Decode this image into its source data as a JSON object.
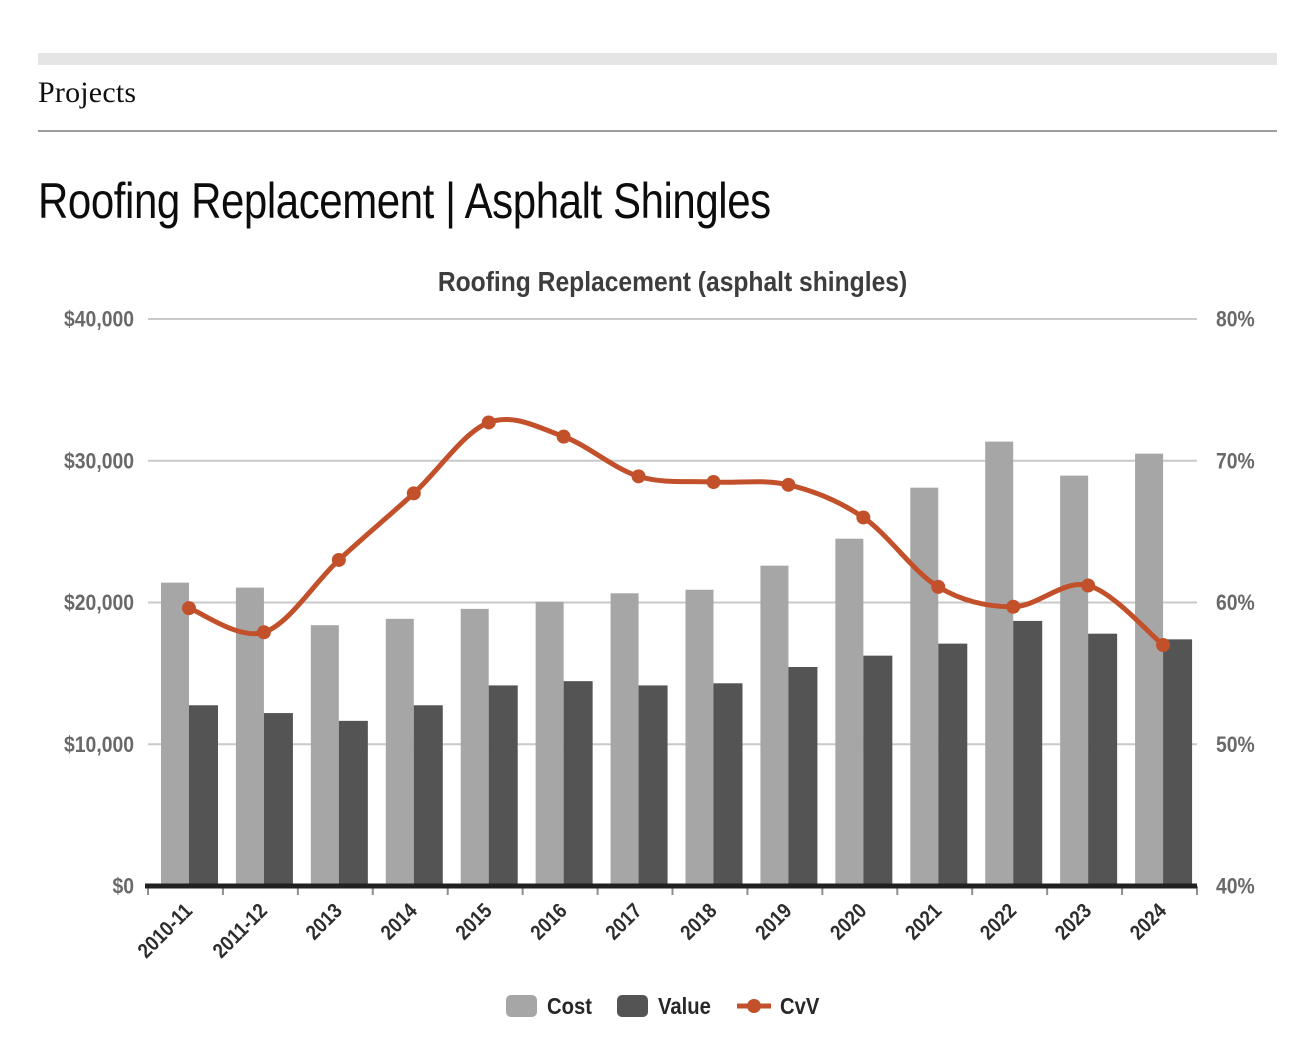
{
  "page": {
    "breadcrumb": "Projects",
    "title": "Roofing Replacement | Asphalt Shingles"
  },
  "chart_data": {
    "type": "bar+line",
    "title": "Roofing Replacement (asphalt shingles)",
    "categories": [
      "2010-11",
      "2011-12",
      "2013",
      "2014",
      "2015",
      "2016",
      "2017",
      "2018",
      "2019",
      "2020",
      "2021",
      "2022",
      "2023",
      "2024"
    ],
    "series": [
      {
        "name": "Cost",
        "type": "bar",
        "axis": "left",
        "color": "#a6a6a6",
        "values": [
          21400,
          21050,
          18400,
          18850,
          19550,
          20050,
          20650,
          20900,
          22600,
          24500,
          28100,
          31350,
          28950,
          30500
        ]
      },
      {
        "name": "Value",
        "type": "bar",
        "axis": "left",
        "color": "#545454",
        "values": [
          12750,
          12200,
          11650,
          12750,
          14150,
          14450,
          14150,
          14300,
          15450,
          16250,
          17100,
          18700,
          17800,
          17400
        ]
      },
      {
        "name": "CvV",
        "type": "line",
        "axis": "right",
        "color": "#c2512b",
        "values": [
          59.6,
          57.9,
          63.0,
          67.7,
          72.7,
          71.7,
          68.9,
          68.5,
          68.3,
          66.0,
          61.1,
          59.7,
          61.2,
          57.0
        ]
      }
    ],
    "left_axis": {
      "min": 0,
      "max": 40000,
      "tick_labels": [
        "$0",
        "$10,000",
        "$20,000",
        "$30,000",
        "$40,000"
      ]
    },
    "right_axis": {
      "min": 40,
      "max": 80,
      "tick_labels": [
        "40%",
        "50%",
        "60%",
        "70%",
        "80%"
      ],
      "unit": "%"
    },
    "legend": {
      "items": [
        "Cost",
        "Value",
        "CvV"
      ],
      "position": "bottom-center"
    },
    "grid": "horizontal",
    "colors": {
      "grid": "#c9c9c9",
      "axis": "#212121",
      "tick": "#8f8f8f",
      "y_label": "#696969",
      "x_label": "#2d2d2d",
      "title": "#3d3d3d",
      "legend_text": "#272727"
    }
  }
}
